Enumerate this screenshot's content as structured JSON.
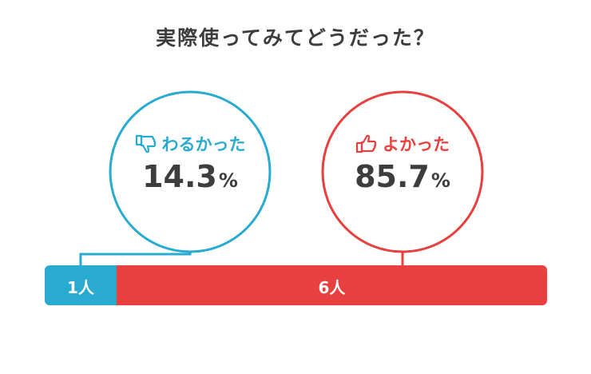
{
  "title": "実際使ってみてどうだった？",
  "chart_data": {
    "type": "bar",
    "subtype": "stacked-horizontal",
    "categories": [
      "わるかった",
      "よかった"
    ],
    "values": [
      1,
      6
    ],
    "unit": "人",
    "percent_unit": "%",
    "percentages": [
      "14.3",
      "85.7"
    ],
    "count_labels": [
      "1人",
      "6人"
    ],
    "colors": [
      "#29abd1",
      "#e83f3f"
    ],
    "icons": [
      "thumbs-down-icon",
      "thumbs-up-icon"
    ]
  }
}
